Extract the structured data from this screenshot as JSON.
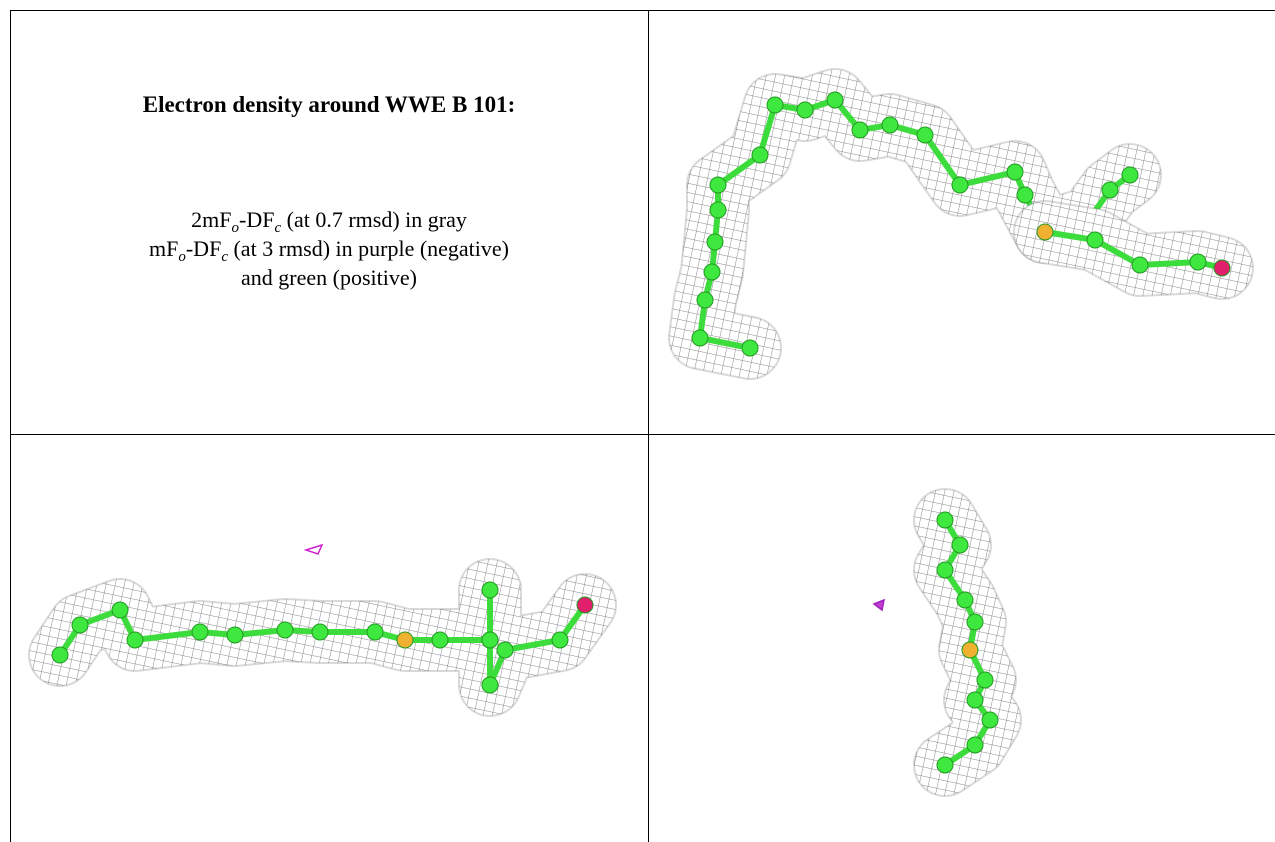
{
  "title": "Electron density around WWE B 101:",
  "legend": [
    [
      "2mF",
      "o",
      "-DF",
      "c",
      " (at 0.7 rmsd) in gray"
    ],
    [
      "mF",
      "o",
      "-DF",
      "c",
      " (at 3 rmsd) in purple (negative)"
    ],
    [
      "and green (positive)"
    ]
  ]
}
